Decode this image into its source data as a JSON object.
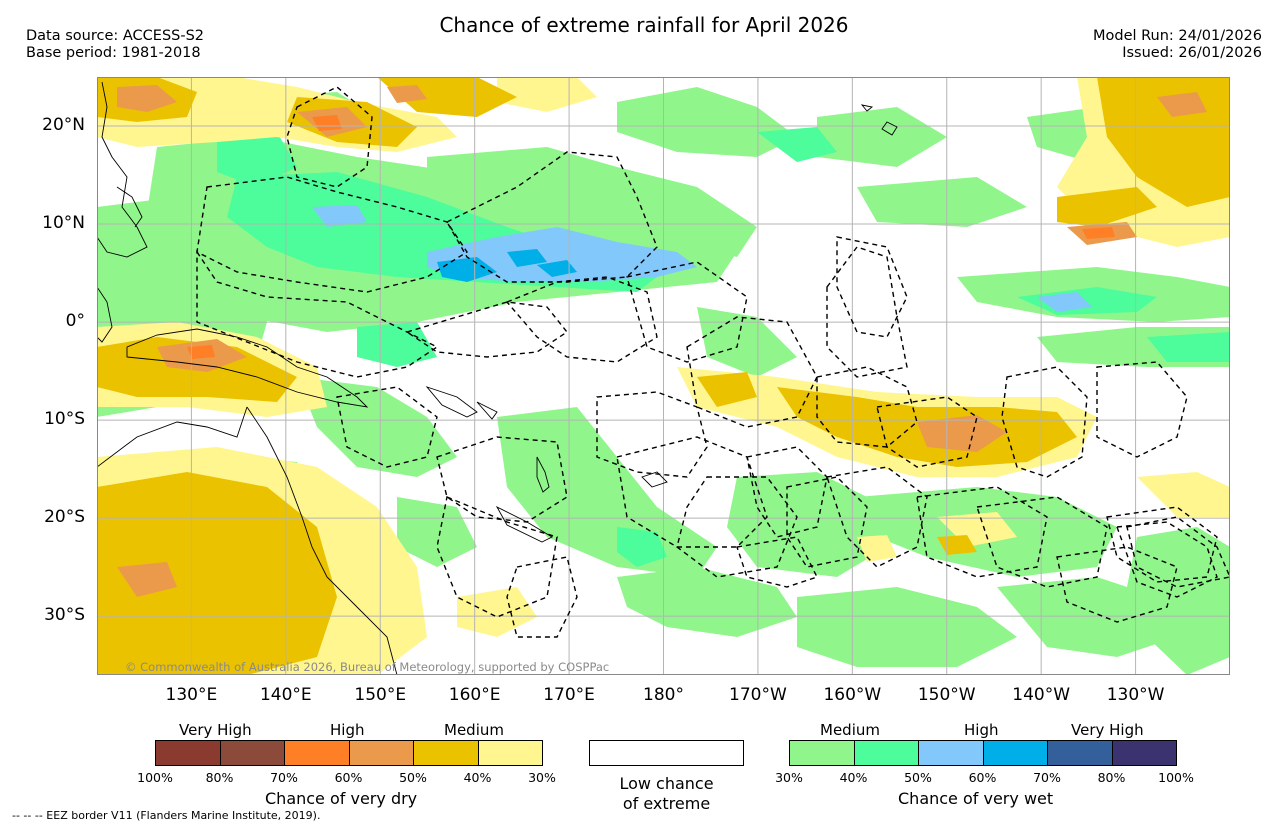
{
  "header": {
    "data_source": "Data source: ACCESS-S2",
    "base_period": "Base period: 1981-2018",
    "title": "Chance of extreme rainfall for April 2026",
    "model_run": "Model Run: 24/01/2026",
    "issued": "Issued: 26/01/2026"
  },
  "map": {
    "lon_range": [
      120,
      240
    ],
    "lat_range": [
      -36,
      25
    ],
    "lat_labels": [
      "20°N",
      "10°N",
      "0°",
      "10°S",
      "20°S",
      "30°S"
    ],
    "lon_labels": [
      "130°E",
      "140°E",
      "150°E",
      "160°E",
      "170°E",
      "180°",
      "170°W",
      "160°W",
      "150°W",
      "140°W",
      "130°W"
    ],
    "copyright": "© Commonwealth of Australia 2026, Bureau of Meteorology, supported by COSPPac",
    "field_colors": {
      "land_outline": "#000000",
      "eez_border": "#000000",
      "gridline": "#b4b4b4"
    }
  },
  "colorbars": {
    "dry": {
      "categories": [
        "Very High",
        "High",
        "Medium"
      ],
      "colors": [
        "#8b3a2f",
        "#8b4a3a",
        "#ff7f27",
        "#eb9a4b",
        "#ebc200",
        "#fff68f"
      ],
      "percents": [
        "100%",
        "80%",
        "70%",
        "60%",
        "50%",
        "40%",
        "30%"
      ],
      "caption": "Chance of very dry"
    },
    "low": {
      "line1": "Low chance",
      "line2": "of extreme",
      "color": "#ffffff"
    },
    "wet": {
      "categories": [
        "Medium",
        "High",
        "Very High"
      ],
      "colors": [
        "#90f68c",
        "#4dfc9a",
        "#82c8fa",
        "#00aee8",
        "#335f9a",
        "#3b3370"
      ],
      "percents": [
        "30%",
        "40%",
        "50%",
        "60%",
        "70%",
        "80%",
        "100%"
      ],
      "caption": "Chance of very wet"
    }
  },
  "footer": {
    "eez_legend": "--  --  -- EEZ border V11 (Flanders Marine Institute, 2019)."
  }
}
